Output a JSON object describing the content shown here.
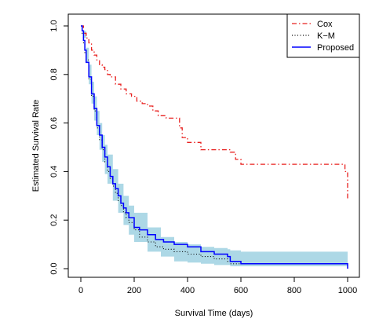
{
  "chart_data": {
    "type": "line",
    "xlabel": "Survival Time (days)",
    "ylabel": "Estimated Survival Rate",
    "xlim": [
      0,
      1000
    ],
    "ylim": [
      0,
      1
    ],
    "x_ticks": [
      0,
      200,
      400,
      600,
      800,
      1000
    ],
    "y_ticks": [
      0.0,
      0.2,
      0.4,
      0.6,
      0.8,
      1.0
    ],
    "x_tick_labels": [
      "0",
      "200",
      "400",
      "600",
      "800",
      "1000"
    ],
    "y_tick_labels": [
      "0.0",
      "0.2",
      "0.4",
      "0.6",
      "0.8",
      "1.0"
    ],
    "legend": {
      "placement": "top-right",
      "entries": [
        "Cox",
        "K−M",
        "Proposed"
      ]
    },
    "colors": {
      "cox": "#e8201f",
      "km": "#000000",
      "proposed": "#0000ff",
      "band": "#add8e6"
    },
    "band": {
      "name": "Proposed confidence band",
      "x": [
        0,
        10,
        20,
        30,
        40,
        50,
        60,
        70,
        80,
        90,
        100,
        120,
        140,
        160,
        180,
        200,
        250,
        300,
        350,
        400,
        450,
        500,
        550,
        560,
        600,
        700,
        800,
        900,
        1000
      ],
      "upper": [
        1.0,
        0.98,
        0.91,
        0.84,
        0.77,
        0.71,
        0.65,
        0.6,
        0.55,
        0.51,
        0.47,
        0.41,
        0.35,
        0.3,
        0.26,
        0.23,
        0.17,
        0.13,
        0.11,
        0.1,
        0.09,
        0.085,
        0.08,
        0.075,
        0.07,
        0.07,
        0.07,
        0.07,
        0.07
      ],
      "lower": [
        1.0,
        0.95,
        0.85,
        0.76,
        0.68,
        0.61,
        0.55,
        0.49,
        0.44,
        0.39,
        0.35,
        0.28,
        0.23,
        0.18,
        0.14,
        0.11,
        0.07,
        0.05,
        0.03,
        0.025,
        0.02,
        0.015,
        0.015,
        0.01,
        0.01,
        0.01,
        0.01,
        0.01,
        0.01
      ]
    },
    "series": [
      {
        "name": "Cox",
        "style": "dashdot",
        "step": true,
        "x": [
          0,
          10,
          20,
          30,
          40,
          50,
          60,
          70,
          80,
          90,
          100,
          110,
          130,
          150,
          170,
          190,
          210,
          230,
          250,
          270,
          290,
          320,
          370,
          380,
          400,
          450,
          560,
          580,
          600,
          990,
          1000
        ],
        "y": [
          1.0,
          0.97,
          0.95,
          0.93,
          0.9,
          0.88,
          0.86,
          0.84,
          0.83,
          0.82,
          0.8,
          0.79,
          0.76,
          0.74,
          0.72,
          0.71,
          0.69,
          0.68,
          0.67,
          0.65,
          0.63,
          0.62,
          0.58,
          0.54,
          0.52,
          0.49,
          0.48,
          0.45,
          0.43,
          0.4,
          0.28
        ]
      },
      {
        "name": "K−M",
        "style": "dotted",
        "step": true,
        "x": [
          0,
          5,
          10,
          15,
          20,
          30,
          40,
          50,
          60,
          70,
          80,
          90,
          100,
          110,
          120,
          130,
          140,
          150,
          160,
          170,
          180,
          200,
          220,
          250,
          280,
          310,
          350,
          400,
          450,
          500,
          550,
          560,
          600,
          700,
          800,
          900,
          1000
        ],
        "y": [
          1.0,
          0.97,
          0.93,
          0.89,
          0.86,
          0.78,
          0.71,
          0.65,
          0.58,
          0.53,
          0.49,
          0.44,
          0.4,
          0.37,
          0.34,
          0.31,
          0.28,
          0.26,
          0.23,
          0.21,
          0.19,
          0.16,
          0.13,
          0.11,
          0.09,
          0.08,
          0.07,
          0.06,
          0.05,
          0.04,
          0.03,
          0.02,
          0.02,
          0.02,
          0.02,
          0.02,
          0.0
        ]
      },
      {
        "name": "Proposed",
        "style": "solid",
        "step": true,
        "x": [
          0,
          5,
          10,
          15,
          20,
          30,
          40,
          50,
          60,
          70,
          80,
          90,
          100,
          110,
          120,
          130,
          140,
          150,
          160,
          170,
          180,
          200,
          220,
          250,
          280,
          310,
          350,
          400,
          450,
          500,
          550,
          560,
          600,
          700,
          800,
          900,
          995,
          1000
        ],
        "y": [
          1.0,
          0.98,
          0.94,
          0.9,
          0.85,
          0.79,
          0.72,
          0.66,
          0.59,
          0.55,
          0.5,
          0.46,
          0.42,
          0.38,
          0.35,
          0.33,
          0.3,
          0.27,
          0.25,
          0.23,
          0.21,
          0.17,
          0.16,
          0.14,
          0.12,
          0.11,
          0.1,
          0.09,
          0.07,
          0.06,
          0.05,
          0.03,
          0.02,
          0.02,
          0.02,
          0.02,
          0.02,
          0.0
        ]
      }
    ]
  }
}
